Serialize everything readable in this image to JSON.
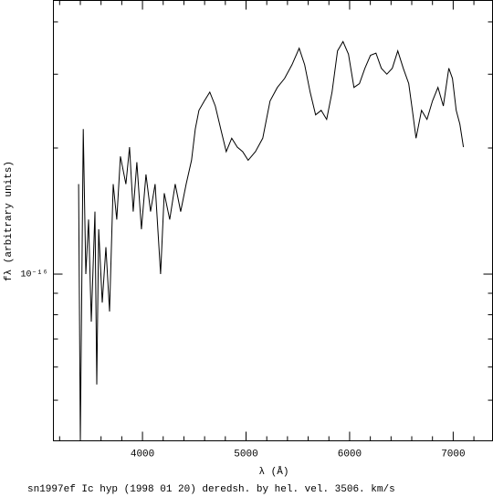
{
  "chart_data": {
    "type": "line",
    "caption": "sn1997ef Ic hyp (1998 01 20) deredsh. by hel. vel.  3506. km/s",
    "xlabel": "λ (Å)",
    "ylabel": "fλ (arbitrary units)",
    "color": "#000000",
    "log_y": true,
    "xlim": [
      3140,
      7380
    ],
    "ylim": [
      4e-17,
      4.5e-16
    ],
    "xticks": [
      4000,
      5000,
      6000,
      7000
    ],
    "minor_xticks": [
      3200,
      3400,
      3600,
      3800,
      4200,
      4400,
      4600,
      4800,
      5200,
      5400,
      5600,
      5800,
      6200,
      6400,
      6600,
      6800,
      7200
    ],
    "yticks": [
      {
        "value": 1e-16,
        "label": "10⁻¹⁶"
      }
    ],
    "minor_yticks": [
      5e-17,
      6e-17,
      7e-17,
      8e-17,
      9e-17,
      2e-16,
      3e-16,
      4e-16
    ],
    "x": [
      3383,
      3400,
      3428,
      3453,
      3479,
      3506,
      3541,
      3559,
      3577,
      3612,
      3647,
      3682,
      3717,
      3752,
      3787,
      3840,
      3875,
      3910,
      3946,
      3990,
      4034,
      4078,
      4122,
      4175,
      4210,
      4263,
      4316,
      4369,
      4422,
      4474,
      4510,
      4545,
      4597,
      4650,
      4703,
      4756,
      4809,
      4862,
      4915,
      4967,
      5020,
      5091,
      5161,
      5232,
      5302,
      5372,
      5443,
      5513,
      5566,
      5619,
      5672,
      5725,
      5778,
      5830,
      5883,
      5936,
      5989,
      6042,
      6095,
      6148,
      6201,
      6254,
      6306,
      6359,
      6412,
      6465,
      6518,
      6571,
      6606,
      6641,
      6694,
      6747,
      6800,
      6853,
      6905,
      6958,
      6993,
      7029,
      7064,
      7099
    ],
    "values": [
      1.64e-16,
      4e-17,
      2.22e-16,
      1e-16,
      1.35e-16,
      7.7e-17,
      1.41e-16,
      5.45e-17,
      1.28e-16,
      8.55e-17,
      1.16e-16,
      8.14e-17,
      1.64e-16,
      1.35e-16,
      1.91e-16,
      1.64e-16,
      2.01e-16,
      1.41e-16,
      1.85e-16,
      1.28e-16,
      1.73e-16,
      1.41e-16,
      1.64e-16,
      1e-16,
      1.56e-16,
      1.35e-16,
      1.64e-16,
      1.41e-16,
      1.64e-16,
      1.87e-16,
      2.22e-16,
      2.46e-16,
      2.59e-16,
      2.72e-16,
      2.52e-16,
      2.22e-16,
      1.96e-16,
      2.11e-16,
      2.01e-16,
      1.96e-16,
      1.87e-16,
      1.96e-16,
      2.11e-16,
      2.59e-16,
      2.79e-16,
      2.93e-16,
      3.16e-16,
      3.46e-16,
      3.16e-16,
      2.72e-16,
      2.4e-16,
      2.46e-16,
      2.34e-16,
      2.72e-16,
      3.41e-16,
      3.59e-16,
      3.35e-16,
      2.79e-16,
      2.85e-16,
      3.1e-16,
      3.33e-16,
      3.37e-16,
      3.1e-16,
      3e-16,
      3.1e-16,
      3.41e-16,
      3.1e-16,
      2.85e-16,
      2.46e-16,
      2.11e-16,
      2.46e-16,
      2.34e-16,
      2.59e-16,
      2.79e-16,
      2.52e-16,
      3.1e-16,
      2.93e-16,
      2.46e-16,
      2.28e-16,
      2.01e-16
    ]
  }
}
